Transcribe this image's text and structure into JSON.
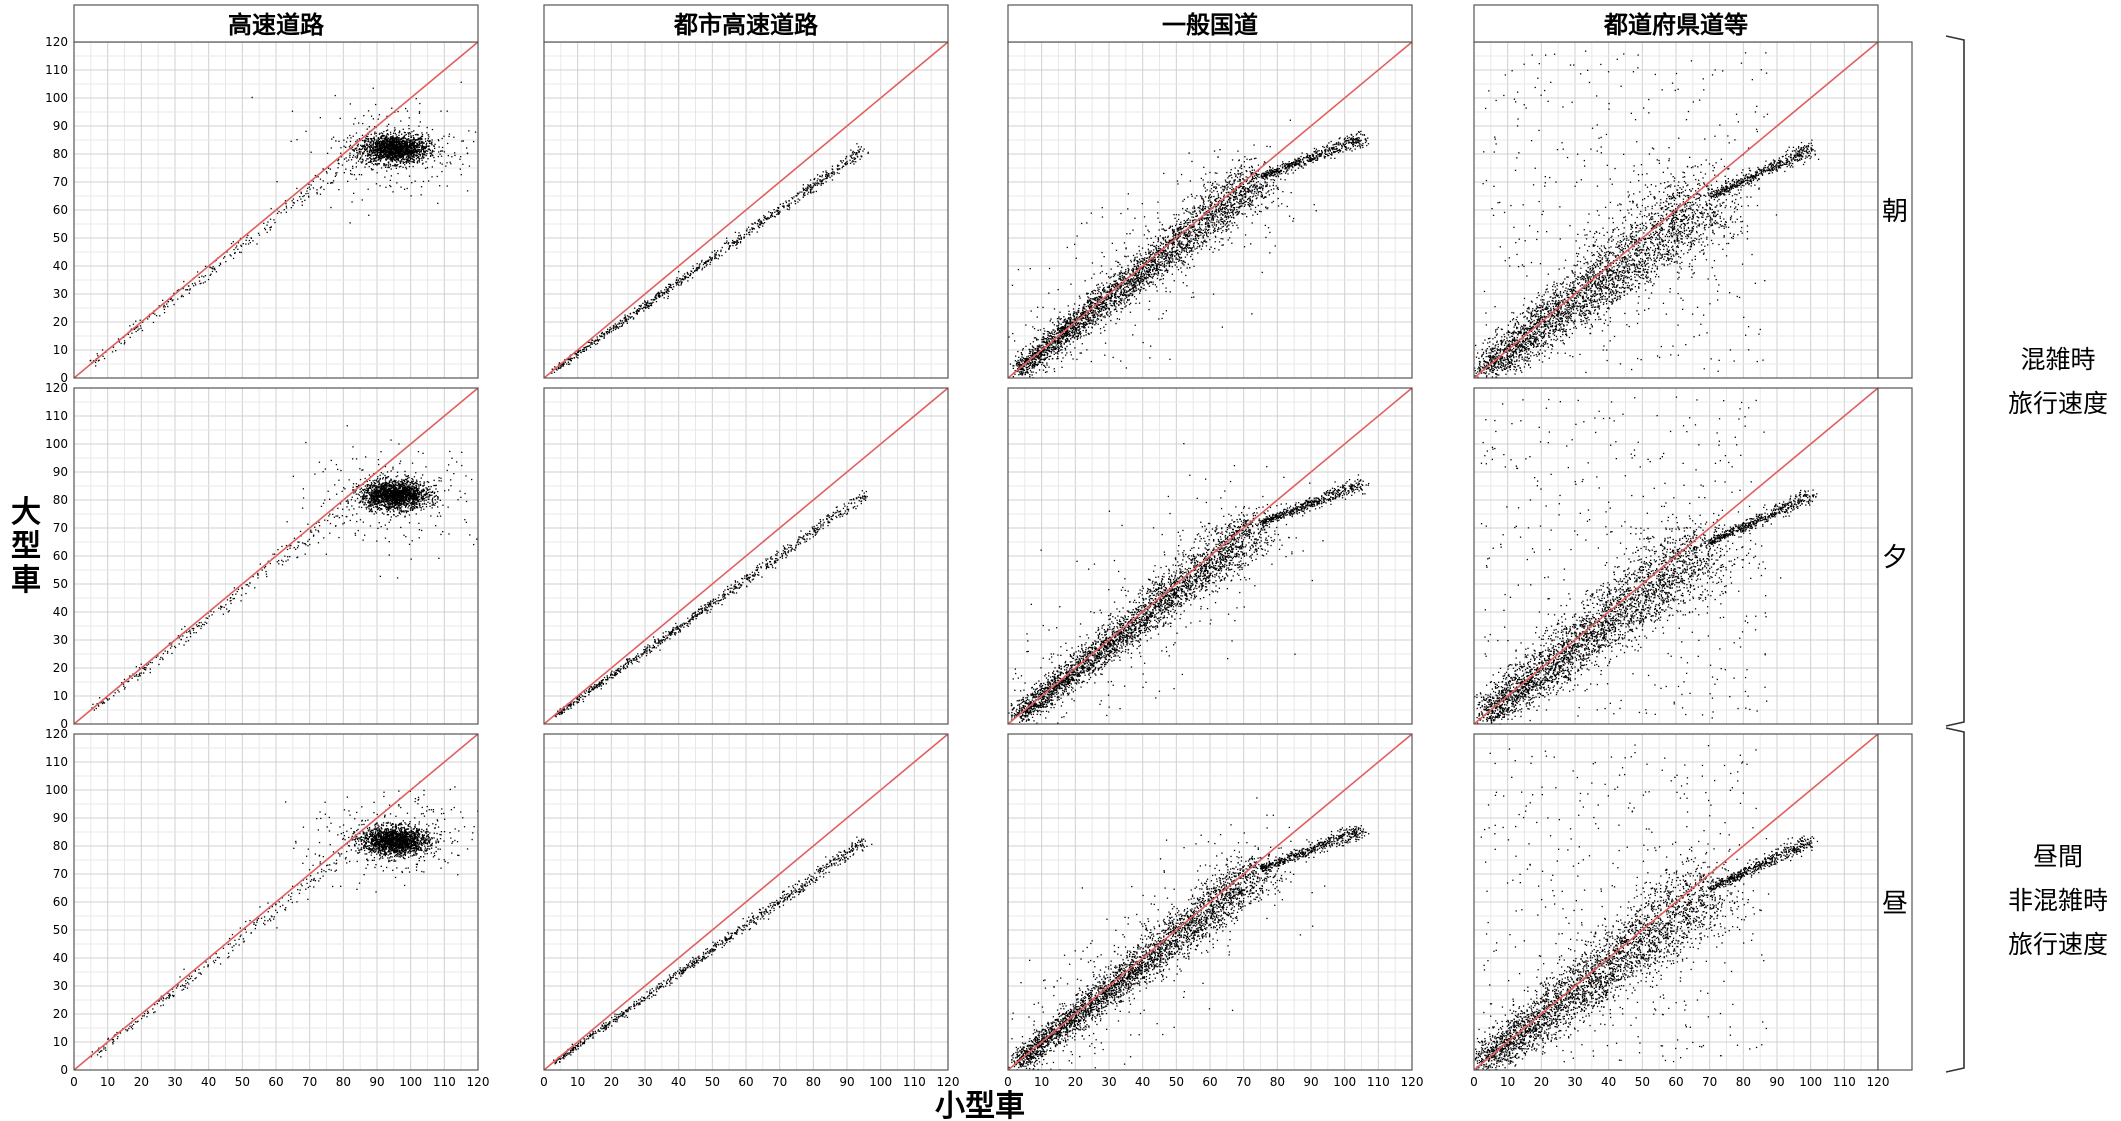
{
  "chart_data": {
    "type": "scatter",
    "facet_columns": [
      "高速道路",
      "都市高速道路",
      "一般国道",
      "都道府県道等"
    ],
    "facet_rows": [
      "朝",
      "夕",
      "昼"
    ],
    "row_groups": [
      {
        "label_lines": [
          "混雑時",
          "旅行速度"
        ],
        "rows": [
          "朝",
          "夕"
        ]
      },
      {
        "label_lines": [
          "昼間",
          "非混雑時",
          "旅行速度"
        ],
        "rows": [
          "昼"
        ]
      }
    ],
    "xlabel": "小型車",
    "ylabel": "大型車",
    "xlim": [
      0,
      120
    ],
    "ylim": [
      0,
      120
    ],
    "x_ticks": [
      0,
      10,
      20,
      30,
      40,
      50,
      60,
      70,
      80,
      90,
      100,
      110,
      120
    ],
    "y_ticks": [
      0,
      10,
      20,
      30,
      40,
      50,
      60,
      70,
      80,
      90,
      100,
      110,
      120
    ],
    "grid": true,
    "reference_line": {
      "x": [
        0,
        120
      ],
      "y": [
        0,
        120
      ],
      "color": "#e06060"
    },
    "point_color": "#000000",
    "clusters": {
      "高速道路": {
        "main": {
          "x_range": [
            72,
            108
          ],
          "center": [
            95,
            82
          ],
          "spread": [
            5,
            2.5
          ],
          "density": "very high"
        },
        "tail": {
          "from": [
            5,
            5
          ],
          "to": [
            80,
            77
          ]
        }
      },
      "都市高速道路": {
        "band": {
          "from": [
            3,
            3
          ],
          "to": [
            95,
            82
          ],
          "width": 1.5,
          "density": "medium"
        }
      },
      "一般国道": {
        "band": {
          "from": [
            3,
            3
          ],
          "to": [
            75,
            72
          ],
          "width": 6,
          "density": "very high"
        },
        "tail": {
          "from": [
            75,
            72
          ],
          "to": [
            105,
            86
          ]
        }
      },
      "都道府県道等": {
        "band": {
          "from": [
            3,
            3
          ],
          "to": [
            70,
            65
          ],
          "width": 10,
          "density": "very high"
        },
        "tail": {
          "from": [
            70,
            65
          ],
          "to": [
            100,
            82
          ]
        },
        "background_noise": true
      }
    }
  }
}
